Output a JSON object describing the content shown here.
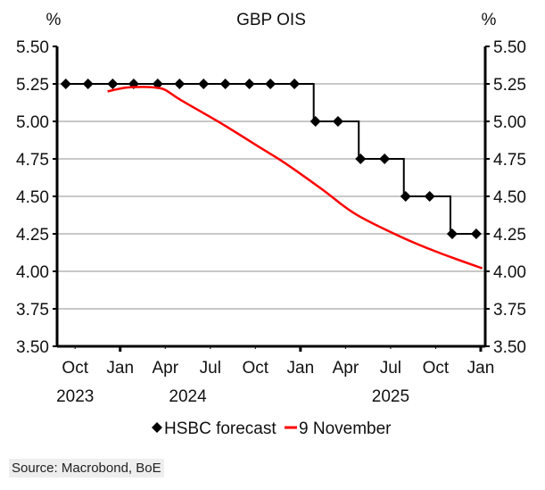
{
  "chart_data": {
    "type": "line",
    "title": "GBP OIS",
    "ylabel_left": "%",
    "ylabel_right": "%",
    "ylim": [
      3.5,
      5.5
    ],
    "yticks": [
      "3.50",
      "3.75",
      "4.00",
      "4.25",
      "4.50",
      "4.75",
      "5.00",
      "5.25",
      "5.50"
    ],
    "grid": true,
    "x_range_months": [
      -1.2,
      27.3
    ],
    "xticks": [
      {
        "m": 0,
        "label": "Oct"
      },
      {
        "m": 3,
        "label": "Jan"
      },
      {
        "m": 6,
        "label": "Apr"
      },
      {
        "m": 9,
        "label": "Jul"
      },
      {
        "m": 12,
        "label": "Oct"
      },
      {
        "m": 15,
        "label": "Jan"
      },
      {
        "m": 18,
        "label": "Apr"
      },
      {
        "m": 21,
        "label": "Jul"
      },
      {
        "m": 24,
        "label": "Oct"
      },
      {
        "m": 27,
        "label": "Jan"
      }
    ],
    "year_labels": [
      {
        "m": 0,
        "label": "2023"
      },
      {
        "m": 7.5,
        "label": "2024"
      },
      {
        "m": 21,
        "label": "2025"
      }
    ],
    "legend_position": "bottom",
    "series": [
      {
        "name": "HSBC forecast",
        "color": "#000000",
        "style": "step-diamond",
        "x": [
          -0.62,
          0.86,
          2.5,
          3.9,
          5.5,
          6.95,
          8.55,
          10.0,
          11.6,
          13.0,
          14.6,
          16.0,
          17.5,
          19.0,
          20.6,
          22.0,
          23.6,
          25.1,
          26.7
        ],
        "y": [
          5.25,
          5.25,
          5.25,
          5.25,
          5.25,
          5.25,
          5.25,
          5.25,
          5.25,
          5.25,
          5.25,
          5.0,
          5.0,
          4.75,
          4.75,
          4.5,
          4.5,
          4.25,
          4.25
        ]
      },
      {
        "name": "9 November",
        "color": "#ff0000",
        "style": "line",
        "x": [
          2.16,
          3.34,
          4.53,
          5.41,
          6.0,
          7.07,
          9.67,
          12.4,
          14.0,
          16.4,
          18.7,
          21.9,
          24.2,
          27.1
        ],
        "y": [
          5.2,
          5.225,
          5.23,
          5.225,
          5.21,
          5.14,
          4.99,
          4.82,
          4.72,
          4.55,
          4.38,
          4.22,
          4.125,
          4.02
        ]
      }
    ]
  },
  "source": "Source: Macrobond, BoE"
}
